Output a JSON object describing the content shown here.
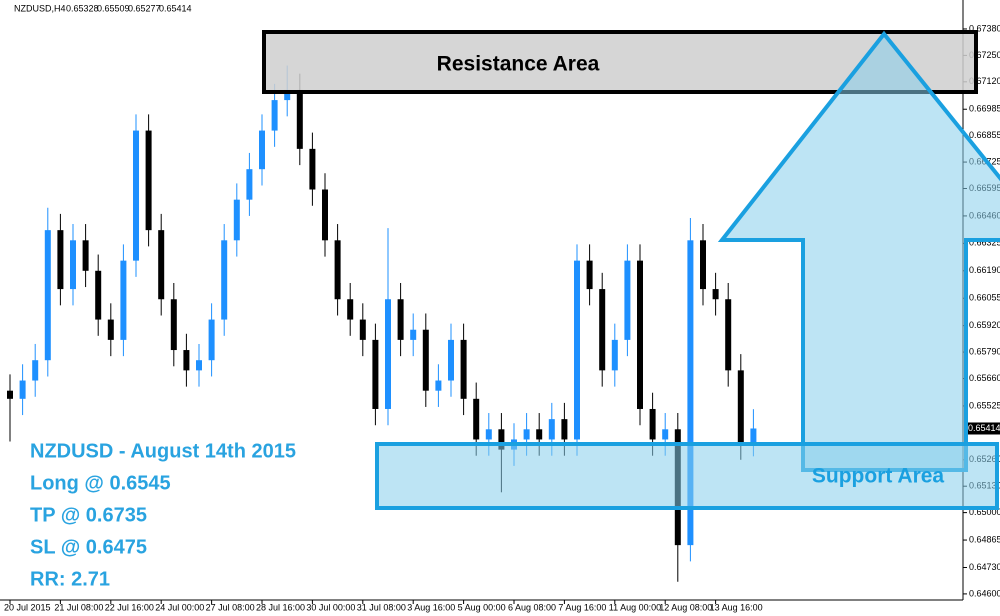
{
  "chart_data": {
    "type": "candlestick",
    "symbol": "NZDUSD,H4",
    "categories": [
      "20 Jul 2015",
      null,
      null,
      null,
      "21 Jul 08:00",
      null,
      null,
      null,
      "22 Jul 16:00",
      null,
      null,
      null,
      "24 Jul 00:00",
      null,
      null,
      null,
      "27 Jul 08:00",
      null,
      null,
      null,
      "28 Jul 16:00",
      null,
      null,
      null,
      "30 Jul 00:00",
      null,
      null,
      null,
      "31 Jul 08:00",
      null,
      null,
      null,
      "3 Aug 16:00",
      null,
      null,
      null,
      "5 Aug 00:00",
      null,
      null,
      null,
      "6 Aug 08:00",
      null,
      null,
      null,
      "7 Aug 16:00",
      null,
      null,
      null,
      "11 Aug 00:00",
      null,
      null,
      null,
      "12 Aug 08:00",
      null,
      null,
      null,
      "13 Aug 16:00",
      null,
      null,
      null
    ],
    "open": [
      0.656,
      0.6556,
      0.6565,
      0.6575,
      0.6639,
      0.661,
      0.6634,
      0.6619,
      0.6595,
      0.6585,
      0.6624,
      0.6688,
      0.6639,
      0.6605,
      0.658,
      0.657,
      0.6575,
      0.6595,
      0.6634,
      0.6654,
      0.6669,
      0.6688,
      0.6703,
      0.6708,
      0.6679,
      0.6659,
      0.6634,
      0.6605,
      0.6595,
      0.6585,
      0.6551,
      0.6605,
      0.6585,
      0.659,
      0.656,
      0.6565,
      0.6585,
      0.6556,
      0.6536,
      0.6541,
      0.6531,
      0.6536,
      0.6541,
      0.6536,
      0.6546,
      0.6536,
      0.6624,
      0.661,
      0.657,
      0.6585,
      0.6624,
      0.6551,
      0.6536,
      0.6541,
      0.6484,
      0.6634,
      0.661,
      0.6605,
      0.657,
      0.65328
    ],
    "high": [
      0.6568,
      0.6573,
      0.6583,
      0.665,
      0.6647,
      0.6642,
      0.6642,
      0.6627,
      0.6603,
      0.6632,
      0.6696,
      0.6696,
      0.6647,
      0.6613,
      0.6588,
      0.6583,
      0.6603,
      0.6642,
      0.6662,
      0.6677,
      0.6696,
      0.6711,
      0.672,
      0.6716,
      0.6687,
      0.6667,
      0.6642,
      0.6613,
      0.6603,
      0.6593,
      0.664,
      0.6613,
      0.6598,
      0.6598,
      0.6573,
      0.6593,
      0.6593,
      0.6564,
      0.6549,
      0.6549,
      0.6544,
      0.6549,
      0.6549,
      0.6554,
      0.6554,
      0.6632,
      0.6632,
      0.6618,
      0.6593,
      0.6632,
      0.6632,
      0.6559,
      0.6549,
      0.6549,
      0.6645,
      0.6642,
      0.6618,
      0.6613,
      0.6578,
      0.65509
    ],
    "low": [
      0.6535,
      0.6548,
      0.6557,
      0.6567,
      0.6602,
      0.6602,
      0.6611,
      0.6587,
      0.6577,
      0.6577,
      0.6616,
      0.6631,
      0.6597,
      0.6572,
      0.6562,
      0.6562,
      0.6567,
      0.6587,
      0.6626,
      0.6646,
      0.6661,
      0.668,
      0.6695,
      0.6671,
      0.6651,
      0.6626,
      0.6597,
      0.6587,
      0.6577,
      0.6543,
      0.6543,
      0.6577,
      0.6577,
      0.6552,
      0.6552,
      0.6557,
      0.6548,
      0.6528,
      0.6528,
      0.651,
      0.6523,
      0.6528,
      0.6528,
      0.6528,
      0.6528,
      0.6528,
      0.6602,
      0.6562,
      0.6562,
      0.6577,
      0.6543,
      0.6528,
      0.6528,
      0.6466,
      0.6476,
      0.6602,
      0.6597,
      0.6562,
      0.6526,
      0.65277
    ],
    "close": [
      0.6556,
      0.6565,
      0.6575,
      0.6639,
      0.661,
      0.6634,
      0.6619,
      0.6595,
      0.6585,
      0.6624,
      0.6688,
      0.6639,
      0.6605,
      0.658,
      0.657,
      0.6575,
      0.6595,
      0.6634,
      0.6654,
      0.6669,
      0.6688,
      0.6703,
      0.6708,
      0.6679,
      0.6659,
      0.6634,
      0.6605,
      0.6595,
      0.6585,
      0.6551,
      0.6605,
      0.6585,
      0.659,
      0.656,
      0.6565,
      0.6585,
      0.6556,
      0.6536,
      0.6541,
      0.6531,
      0.6536,
      0.6541,
      0.6536,
      0.6546,
      0.6536,
      0.6624,
      0.661,
      0.657,
      0.6585,
      0.6624,
      0.6551,
      0.6536,
      0.6541,
      0.6484,
      0.6634,
      0.661,
      0.6605,
      0.657,
      0.6534,
      0.65414
    ],
    "up_color": "#1e90ff",
    "down_color": "#000000",
    "ylim": [
      0.6457,
      0.67493
    ],
    "yticks": [
      {
        "value": 0.6738,
        "label": "0.67380"
      },
      {
        "value": 0.6725,
        "label": "0.67250"
      },
      {
        "value": 0.6712,
        "label": "0.67120"
      },
      {
        "value": 0.66985,
        "label": "0.66985"
      },
      {
        "value": 0.66855,
        "label": "0.66855"
      },
      {
        "value": 0.66725,
        "label": "0.66725"
      },
      {
        "value": 0.66595,
        "label": "0.66595"
      },
      {
        "value": 0.6646,
        "label": "0.66460"
      },
      {
        "value": 0.66325,
        "label": "0.66325"
      },
      {
        "value": 0.6619,
        "label": "0.66190"
      },
      {
        "value": 0.66055,
        "label": "0.66055"
      },
      {
        "value": 0.6592,
        "label": "0.65920"
      },
      {
        "value": 0.6579,
        "label": "0.65790"
      },
      {
        "value": 0.6566,
        "label": "0.65660"
      },
      {
        "value": 0.65525,
        "label": "0.65525"
      },
      {
        "value": 0.6526,
        "label": "0.65260"
      },
      {
        "value": 0.6513,
        "label": "0.65130"
      },
      {
        "value": 0.65,
        "label": "0.65000"
      },
      {
        "value": 0.64865,
        "label": "0.64865"
      },
      {
        "value": 0.6473,
        "label": "0.64730"
      },
      {
        "value": 0.646,
        "label": "0.64600"
      }
    ],
    "grid": false,
    "annotations": {
      "resistance": "Resistance Area",
      "support": "Support Area",
      "notes": [
        "NZDUSD - August 14th 2015",
        "Long @ 0.6545",
        "TP @ 0.6735",
        "SL @ 0.6475",
        "RR: 2.71"
      ]
    }
  }
}
